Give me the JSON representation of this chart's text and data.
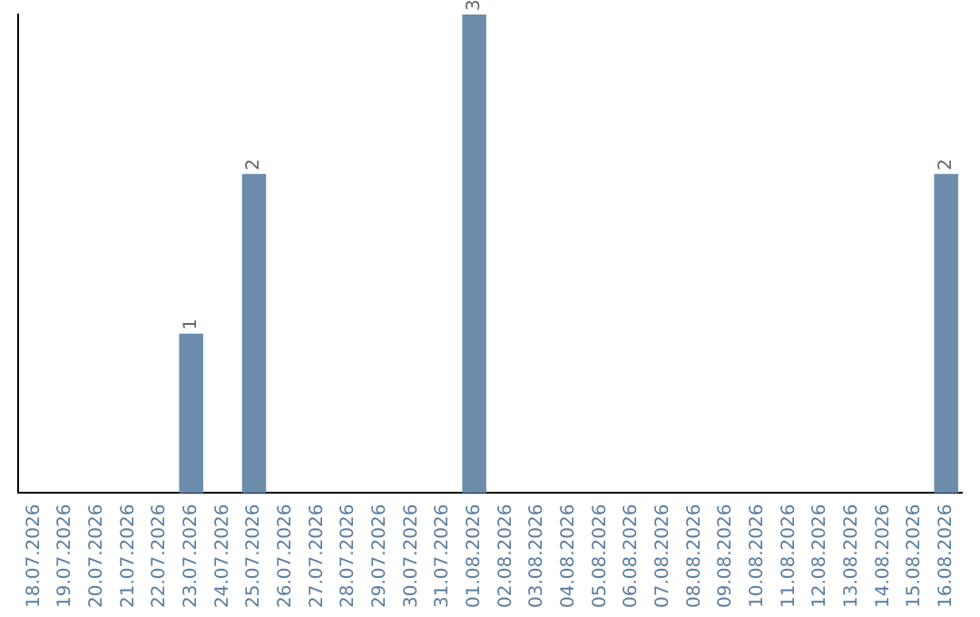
{
  "chart_data": {
    "type": "bar",
    "categories": [
      "18.07.2026",
      "19.07.2026",
      "20.07.2026",
      "21.07.2026",
      "22.07.2026",
      "23.07.2026",
      "24.07.2026",
      "25.07.2026",
      "26.07.2026",
      "27.07.2026",
      "28.07.2026",
      "29.07.2026",
      "30.07.2026",
      "31.07.2026",
      "01.08.2026",
      "02.08.2026",
      "03.08.2026",
      "04.08.2026",
      "05.08.2026",
      "06.08.2026",
      "07.08.2026",
      "08.08.2026",
      "09.08.2026",
      "10.08.2026",
      "11.08.2026",
      "12.08.2026",
      "13.08.2026",
      "14.08.2026",
      "15.08.2026",
      "16.08.2026"
    ],
    "values": [
      0,
      0,
      0,
      0,
      0,
      1,
      0,
      2,
      0,
      0,
      0,
      0,
      0,
      0,
      3,
      0,
      0,
      0,
      0,
      0,
      0,
      0,
      0,
      0,
      0,
      0,
      0,
      0,
      0,
      2
    ],
    "value_labels": [
      null,
      null,
      null,
      null,
      null,
      "1",
      null,
      "2",
      null,
      null,
      null,
      null,
      null,
      null,
      "3",
      null,
      null,
      null,
      null,
      null,
      null,
      null,
      null,
      null,
      null,
      null,
      null,
      null,
      null,
      "2"
    ],
    "color": "#6b8cab",
    "grid": false,
    "legend": false
  }
}
